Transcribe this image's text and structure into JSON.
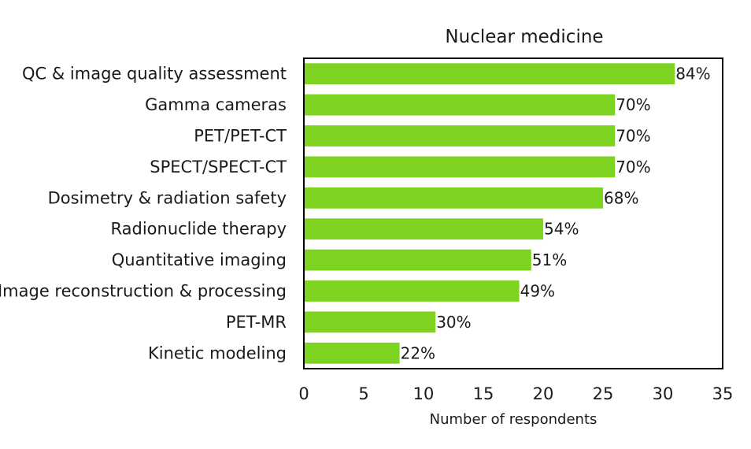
{
  "chart_data": {
    "type": "bar",
    "orientation": "horizontal",
    "title": "Nuclear medicine",
    "xlabel": "Number of respondents",
    "ylabel": "",
    "xlim": [
      0,
      35
    ],
    "xticks": [
      0,
      5,
      10,
      15,
      20,
      25,
      30,
      35
    ],
    "grid": false,
    "legend": "none",
    "bar_color": "#7ed321",
    "categories": [
      "QC & image quality assessment",
      "Gamma cameras",
      "PET/PET-CT",
      "SPECT/SPECT-CT",
      "Dosimetry & radiation safety",
      "Radionuclide therapy",
      "Quantitative imaging",
      "Image reconstruction & processing",
      "PET-MR",
      "Kinetic modeling"
    ],
    "values": [
      31,
      26,
      26,
      26,
      25,
      20,
      19,
      18,
      11,
      8
    ],
    "data_labels": [
      "84%",
      "70%",
      "70%",
      "70%",
      "68%",
      "54%",
      "51%",
      "49%",
      "30%",
      "22%"
    ]
  }
}
